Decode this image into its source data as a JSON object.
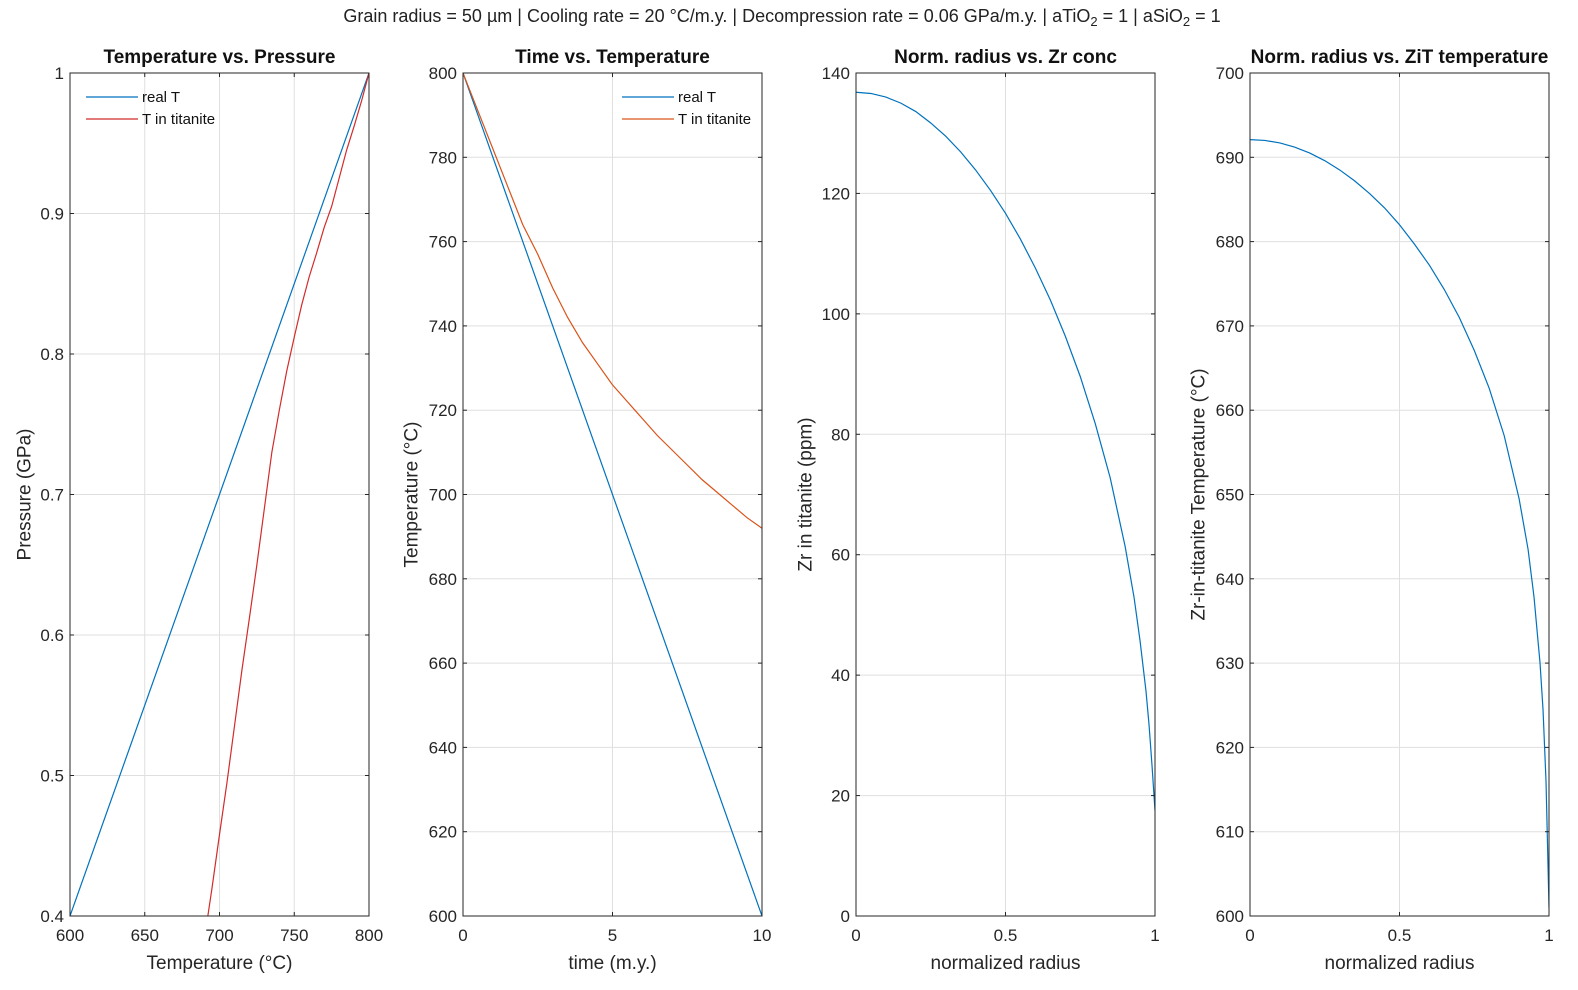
{
  "figure": {
    "suptitle_parts": [
      {
        "text": "Grain radius = 50 µm | Cooling rate = 20 °C/m.y. | Decompression rate = 0.06 GPa/m.y. | aTiO",
        "sub": false
      },
      {
        "text": "2",
        "sub": true
      },
      {
        "text": " = 1 | aSiO",
        "sub": false
      },
      {
        "text": "2",
        "sub": true
      },
      {
        "text": " = 1",
        "sub": false
      }
    ]
  },
  "chart_data": [
    {
      "type": "line",
      "title": "Temperature vs. Pressure",
      "xlabel": "Temperature (°C)",
      "ylabel": "Pressure (GPa)",
      "xlim": [
        600,
        800
      ],
      "ylim": [
        0.4,
        1.0
      ],
      "xticks": [
        600,
        650,
        700,
        750,
        800
      ],
      "yticks": [
        0.4,
        0.5,
        0.6,
        0.7,
        0.8,
        0.9,
        1.0
      ],
      "xtick_labels": [
        "600",
        "650",
        "700",
        "750",
        "800"
      ],
      "ytick_labels": [
        "0.4",
        "0.5",
        "0.6",
        "0.7",
        "0.8",
        "0.9",
        "1"
      ],
      "grid": true,
      "legend_location": "top-left",
      "series": [
        {
          "name": "real T",
          "color": "#0072BD",
          "points": [
            [
              600,
              0.4
            ],
            [
              800,
              1.0
            ]
          ]
        },
        {
          "name": "T in titanite",
          "color": "#D22B2B",
          "points": [
            [
              692.2,
              0.4
            ],
            [
              695,
              0.42
            ],
            [
              700,
              0.458
            ],
            [
              705,
              0.495
            ],
            [
              710,
              0.535
            ],
            [
              715,
              0.575
            ],
            [
              720,
              0.612
            ],
            [
              725,
              0.65
            ],
            [
              730,
              0.69
            ],
            [
              735,
              0.73
            ],
            [
              740,
              0.76
            ],
            [
              745,
              0.788
            ],
            [
              750,
              0.812
            ],
            [
              755,
              0.835
            ],
            [
              760,
              0.855
            ],
            [
              765,
              0.872
            ],
            [
              770,
              0.89
            ],
            [
              775,
              0.905
            ],
            [
              780,
              0.925
            ],
            [
              785,
              0.945
            ],
            [
              790,
              0.962
            ],
            [
              795,
              0.98
            ],
            [
              800,
              1.0
            ]
          ]
        }
      ]
    },
    {
      "type": "line",
      "title": "Time vs. Temperature",
      "xlabel": "time (m.y.)",
      "ylabel": "Temperature (°C)",
      "xlim": [
        0,
        10
      ],
      "ylim": [
        600,
        800
      ],
      "xticks": [
        0,
        5,
        10
      ],
      "yticks": [
        600,
        620,
        640,
        660,
        680,
        700,
        720,
        740,
        760,
        780,
        800
      ],
      "xtick_labels": [
        "0",
        "5",
        "10"
      ],
      "ytick_labels": [
        "600",
        "620",
        "640",
        "660",
        "680",
        "700",
        "720",
        "740",
        "760",
        "780",
        "800"
      ],
      "grid": true,
      "legend_location": "top-right",
      "series": [
        {
          "name": "real T",
          "color": "#0072BD",
          "points": [
            [
              0,
              800
            ],
            [
              10,
              600
            ]
          ]
        },
        {
          "name": "T in titanite",
          "color": "#D95319",
          "points": [
            [
              0,
              800
            ],
            [
              0.5,
              791
            ],
            [
              1,
              782
            ],
            [
              1.5,
              773
            ],
            [
              2,
              764
            ],
            [
              2.5,
              757
            ],
            [
              3,
              749
            ],
            [
              3.5,
              742
            ],
            [
              4,
              736
            ],
            [
              4.5,
              731
            ],
            [
              5,
              726
            ],
            [
              5.5,
              722
            ],
            [
              6,
              718
            ],
            [
              6.5,
              714
            ],
            [
              7,
              710.5
            ],
            [
              7.5,
              707
            ],
            [
              8,
              703.5
            ],
            [
              8.5,
              700.5
            ],
            [
              9,
              697.5
            ],
            [
              9.5,
              694.5
            ],
            [
              10,
              692
            ]
          ]
        }
      ]
    },
    {
      "type": "line",
      "title": "Norm. radius vs. Zr conc",
      "xlabel": "normalized radius",
      "ylabel": "Zr in titanite (ppm)",
      "xlim": [
        0,
        1
      ],
      "ylim": [
        0,
        140
      ],
      "xticks": [
        0,
        0.5,
        1
      ],
      "yticks": [
        0,
        20,
        40,
        60,
        80,
        100,
        120,
        140
      ],
      "xtick_labels": [
        "0",
        "0.5",
        "1"
      ],
      "ytick_labels": [
        "0",
        "20",
        "40",
        "60",
        "80",
        "100",
        "120",
        "140"
      ],
      "grid": true,
      "series": [
        {
          "color": "#0072BD",
          "points": [
            [
              0,
              136.8
            ],
            [
              0.05,
              136.6
            ],
            [
              0.1,
              136.0
            ],
            [
              0.15,
              135.0
            ],
            [
              0.2,
              133.6
            ],
            [
              0.25,
              131.7
            ],
            [
              0.3,
              129.5
            ],
            [
              0.35,
              126.9
            ],
            [
              0.4,
              123.9
            ],
            [
              0.45,
              120.5
            ],
            [
              0.5,
              116.7
            ],
            [
              0.55,
              112.4
            ],
            [
              0.6,
              107.6
            ],
            [
              0.65,
              102.3
            ],
            [
              0.7,
              96.3
            ],
            [
              0.75,
              89.6
            ],
            [
              0.8,
              81.8
            ],
            [
              0.85,
              72.8
            ],
            [
              0.9,
              61.4
            ],
            [
              0.93,
              52.9
            ],
            [
              0.95,
              45.7
            ],
            [
              0.97,
              37.3
            ],
            [
              0.98,
              31.8
            ],
            [
              0.99,
              25.0
            ],
            [
              1.0,
              17.5
            ]
          ]
        }
      ]
    },
    {
      "type": "line",
      "title": "Norm. radius vs. ZiT temperature",
      "xlabel": "normalized radius",
      "ylabel": "Zr-in-titanite Temperature (°C)",
      "xlim": [
        0,
        1
      ],
      "ylim": [
        600,
        700
      ],
      "xticks": [
        0,
        0.5,
        1
      ],
      "yticks": [
        600,
        610,
        620,
        630,
        640,
        650,
        660,
        670,
        680,
        690,
        700
      ],
      "xtick_labels": [
        "0",
        "0.5",
        "1"
      ],
      "ytick_labels": [
        "600",
        "610",
        "620",
        "630",
        "640",
        "650",
        "660",
        "670",
        "680",
        "690",
        "700"
      ],
      "grid": true,
      "series": [
        {
          "color": "#0072BD",
          "points": [
            [
              0,
              692.1
            ],
            [
              0.05,
              692.0
            ],
            [
              0.1,
              691.7
            ],
            [
              0.15,
              691.2
            ],
            [
              0.2,
              690.5
            ],
            [
              0.25,
              689.6
            ],
            [
              0.3,
              688.5
            ],
            [
              0.35,
              687.2
            ],
            [
              0.4,
              685.7
            ],
            [
              0.45,
              684.0
            ],
            [
              0.5,
              682.0
            ],
            [
              0.55,
              679.7
            ],
            [
              0.6,
              677.2
            ],
            [
              0.65,
              674.3
            ],
            [
              0.7,
              671.0
            ],
            [
              0.75,
              667.1
            ],
            [
              0.8,
              662.6
            ],
            [
              0.85,
              657.0
            ],
            [
              0.9,
              649.5
            ],
            [
              0.93,
              643.5
            ],
            [
              0.95,
              637.8
            ],
            [
              0.97,
              630.0
            ],
            [
              0.98,
              624.5
            ],
            [
              0.99,
              616.0
            ],
            [
              1.0,
              601.0
            ]
          ]
        }
      ]
    }
  ]
}
